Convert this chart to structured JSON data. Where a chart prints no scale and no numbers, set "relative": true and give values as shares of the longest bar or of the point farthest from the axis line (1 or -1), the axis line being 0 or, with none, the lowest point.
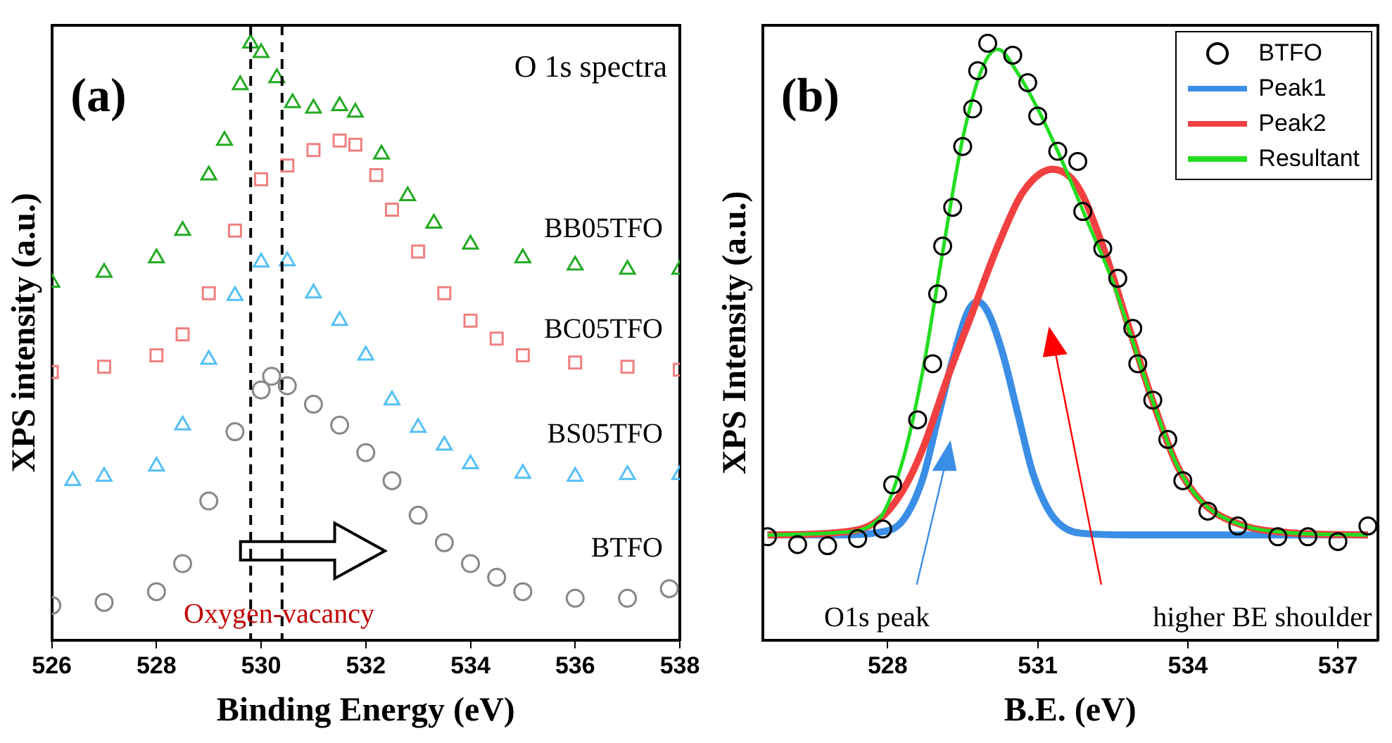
{
  "chart_data": [
    {
      "type": "scatter",
      "xlabel": "Binding Energy (eV)",
      "ylabel": "XPS intensity (a.u.)",
      "relative": true,
      "xlim": [
        526,
        538
      ],
      "xticks": [
        526,
        528,
        530,
        532,
        534,
        536,
        538
      ],
      "tick_labels": "x",
      "grid": false,
      "legend": false,
      "annotations": [
        "(a)",
        "O 1s spectra",
        "Oxygen-vacancy"
      ],
      "ref_lines": [
        {
          "axis": "x",
          "value": 529.8,
          "line_style": "dashed",
          "color": "#000000"
        },
        {
          "axis": "x",
          "value": 530.4,
          "line_style": "dashed",
          "color": "#000000"
        }
      ],
      "series": [
        {
          "name": "BB05TFO",
          "color": "#22aa22",
          "marker": "triangle",
          "x": [
            526,
            527,
            528,
            528.5,
            529,
            529.3,
            529.6,
            529.8,
            530,
            530.3,
            530.6,
            531,
            531.5,
            531.8,
            532.3,
            532.8,
            533.3,
            534,
            535,
            536,
            537,
            538
          ],
          "values": [
            0.599,
            0.616,
            0.64,
            0.686,
            0.779,
            0.837,
            0.93,
            1,
            0.984,
            0.942,
            0.9,
            0.891,
            0.895,
            0.884,
            0.814,
            0.744,
            0.698,
            0.663,
            0.64,
            0.628,
            0.621,
            0.621
          ]
        },
        {
          "name": "BC05TFO",
          "color": "#f08080",
          "marker": "square",
          "x": [
            526,
            527,
            528,
            528.5,
            529,
            529.5,
            530,
            530.5,
            531,
            531.5,
            531.8,
            532.2,
            532.5,
            533,
            533.5,
            534,
            534.5,
            535,
            536,
            537,
            538
          ],
          "values": [
            0.449,
            0.458,
            0.477,
            0.512,
            0.581,
            0.686,
            0.772,
            0.795,
            0.821,
            0.837,
            0.83,
            0.779,
            0.721,
            0.651,
            0.581,
            0.535,
            0.505,
            0.477,
            0.465,
            0.458,
            0.453
          ]
        },
        {
          "name": "BS05TFO",
          "color": "#55c0f5",
          "marker": "triangle",
          "x": [
            526.4,
            527,
            528,
            528.5,
            529,
            529.5,
            530,
            530.5,
            531,
            531.5,
            532,
            532.5,
            533,
            533.5,
            534,
            535,
            536,
            537,
            538
          ],
          "values": [
            0.267,
            0.274,
            0.291,
            0.36,
            0.47,
            0.577,
            0.633,
            0.635,
            0.581,
            0.535,
            0.477,
            0.402,
            0.356,
            0.326,
            0.295,
            0.279,
            0.274,
            0.277,
            0.277
          ]
        },
        {
          "name": "BTFO",
          "color": "#888888",
          "marker": "circle",
          "x": [
            526,
            527,
            528,
            528.5,
            529,
            529.5,
            530,
            530.2,
            530.5,
            531,
            531.5,
            532,
            532.5,
            533,
            533.5,
            534,
            534.5,
            535,
            536,
            537,
            537.8
          ],
          "values": [
            0.058,
            0.063,
            0.081,
            0.128,
            0.233,
            0.349,
            0.419,
            0.442,
            0.426,
            0.395,
            0.36,
            0.314,
            0.267,
            0.209,
            0.163,
            0.128,
            0.105,
            0.081,
            0.07,
            0.07,
            0.086
          ]
        }
      ]
    },
    {
      "type": "line",
      "xlabel": "B.E. (eV)",
      "ylabel": "XPS Intensity (a.u.)",
      "relative": true,
      "xlim": [
        525.5,
        537.8
      ],
      "xticks": [
        528,
        531,
        534,
        537
      ],
      "tick_labels": "x",
      "grid": false,
      "legend": "top right",
      "annotations": [
        "(b)",
        "O1s peak",
        "higher BE shoulder"
      ],
      "series": [
        {
          "name": "BTFO",
          "type": "scatter",
          "color": "#000000",
          "marker": "circle",
          "x": [
            525.6,
            526.2,
            526.8,
            527.4,
            527.9,
            528.1,
            528.6,
            528.9,
            529,
            529.1,
            529.3,
            529.5,
            529.7,
            529.8,
            530,
            530.5,
            530.8,
            531,
            531.4,
            531.8,
            531.9,
            532.3,
            532.6,
            532.9,
            533,
            533.3,
            533.6,
            533.9,
            534.4,
            535,
            535.8,
            536.4,
            537,
            537.6
          ],
          "values": [
            0.173,
            0.16,
            0.158,
            0.17,
            0.186,
            0.26,
            0.369,
            0.463,
            0.58,
            0.66,
            0.725,
            0.827,
            0.89,
            0.954,
            1,
            0.98,
            0.934,
            0.878,
            0.819,
            0.802,
            0.718,
            0.656,
            0.606,
            0.522,
            0.463,
            0.402,
            0.336,
            0.267,
            0.216,
            0.191,
            0.173,
            0.173,
            0.165,
            0.191
          ]
        },
        {
          "name": "Peak1",
          "color": "#3a8ee6",
          "x": [
            525.6,
            527,
            527.8,
            528.3,
            528.7,
            529,
            529.3,
            529.6,
            529.8,
            530,
            530.3,
            530.6,
            530.9,
            531.2,
            531.5,
            532,
            533,
            537.6
          ],
          "values": [
            0.176,
            0.176,
            0.18,
            0.2,
            0.27,
            0.37,
            0.47,
            0.55,
            0.567,
            0.55,
            0.48,
            0.38,
            0.28,
            0.22,
            0.19,
            0.178,
            0.176,
            0.176
          ]
        },
        {
          "name": "Peak2",
          "color": "#f24040",
          "x": [
            525.6,
            527,
            527.8,
            528.3,
            528.7,
            529.2,
            529.7,
            530.2,
            530.7,
            531.3,
            531.8,
            532.3,
            532.8,
            533.3,
            533.8,
            534.3,
            535,
            536,
            537.6
          ],
          "values": [
            0.176,
            0.18,
            0.2,
            0.25,
            0.32,
            0.44,
            0.55,
            0.66,
            0.75,
            0.789,
            0.76,
            0.66,
            0.53,
            0.4,
            0.29,
            0.23,
            0.195,
            0.18,
            0.176
          ]
        },
        {
          "name": "Resultant",
          "color": "#22dd22",
          "x": [
            525.6,
            527,
            527.8,
            528.3,
            528.7,
            529.1,
            529.5,
            529.9,
            530.2,
            530.6,
            531,
            531.5,
            532,
            532.5,
            532.9,
            533.3,
            533.8,
            534.3,
            535,
            536,
            537.6
          ],
          "values": [
            0.176,
            0.18,
            0.2,
            0.3,
            0.45,
            0.65,
            0.84,
            0.96,
            0.99,
            0.95,
            0.89,
            0.8,
            0.7,
            0.6,
            0.5,
            0.4,
            0.29,
            0.23,
            0.195,
            0.18,
            0.176
          ]
        }
      ]
    }
  ]
}
